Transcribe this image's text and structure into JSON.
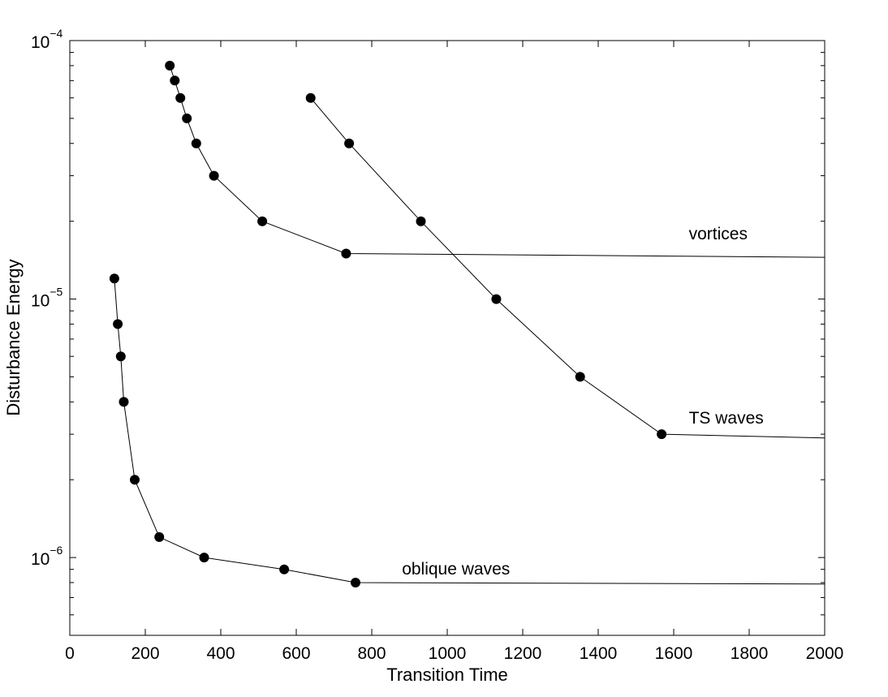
{
  "chart_data": {
    "type": "line",
    "xlabel": "Transition Time",
    "ylabel": "Disturbance Energy",
    "xlim": [
      0,
      2000
    ],
    "ylim": [
      5e-07,
      0.0001
    ],
    "yscale": "log",
    "grid": false,
    "x_ticks": [
      {
        "value": 0,
        "label": "0"
      },
      {
        "value": 200,
        "label": "200"
      },
      {
        "value": 400,
        "label": "400"
      },
      {
        "value": 600,
        "label": "600"
      },
      {
        "value": 800,
        "label": "800"
      },
      {
        "value": 1000,
        "label": "1000"
      },
      {
        "value": 1200,
        "label": "1200"
      },
      {
        "value": 1400,
        "label": "1400"
      },
      {
        "value": 1600,
        "label": "1600"
      },
      {
        "value": 1800,
        "label": "1800"
      },
      {
        "value": 2000,
        "label": "2000"
      }
    ],
    "y_ticks": [
      {
        "value": 1e-06,
        "base": "10",
        "exp": "−6"
      },
      {
        "value": 1e-05,
        "base": "10",
        "exp": "−5"
      },
      {
        "value": 0.0001,
        "base": "10",
        "exp": "−4"
      }
    ],
    "series": [
      {
        "name": "vortices",
        "x": [
          265,
          278,
          293,
          310,
          335,
          382,
          510,
          732
        ],
        "y": [
          8e-05,
          7e-05,
          6e-05,
          5e-05,
          4e-05,
          3e-05,
          2e-05,
          1.5e-05
        ],
        "tail": {
          "x": 2000,
          "y": 1.45e-05
        }
      },
      {
        "name": "TS waves",
        "x": [
          638,
          740,
          930,
          1130,
          1352,
          1568
        ],
        "y": [
          6e-05,
          4e-05,
          2e-05,
          1e-05,
          5e-06,
          3e-06
        ],
        "tail": {
          "x": 2000,
          "y": 2.9e-06
        }
      },
      {
        "name": "oblique waves",
        "x": [
          118,
          127,
          135,
          143,
          172,
          237,
          356,
          568,
          757
        ],
        "y": [
          1.2e-05,
          8e-06,
          6e-06,
          4e-06,
          2e-06,
          1.2e-06,
          1e-06,
          9e-07,
          8e-07
        ],
        "tail": {
          "x": 2000,
          "y": 7.9e-07
        }
      }
    ],
    "annotations": [
      {
        "text": "vortices",
        "x": 1640,
        "y": 1.7e-05
      },
      {
        "text": "TS waves",
        "x": 1640,
        "y": 3.3e-06
      },
      {
        "text": "oblique waves",
        "x": 880,
        "y": 8.6e-07
      }
    ],
    "colors": {
      "line": "#000000",
      "marker": "#000000",
      "axes": "#000000",
      "background": "#ffffff"
    }
  }
}
